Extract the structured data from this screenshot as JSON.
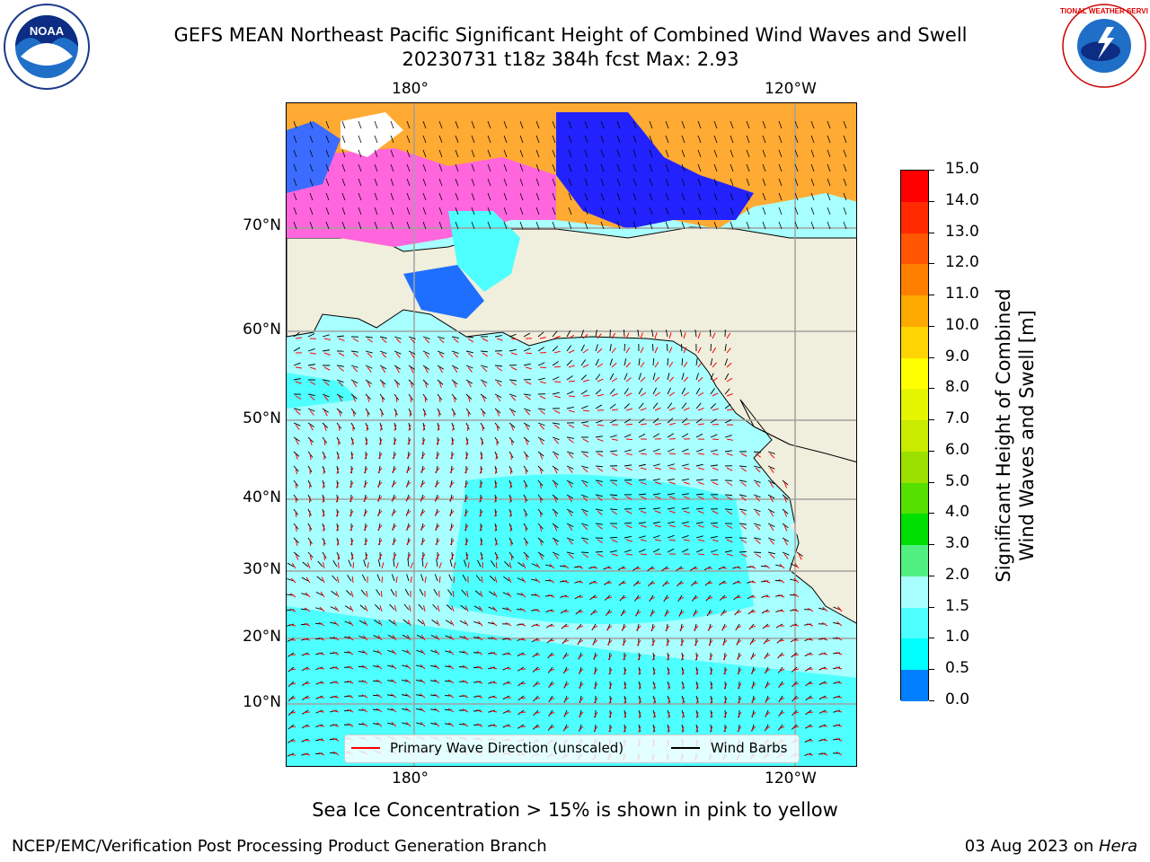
{
  "title_line1": "GEFS MEAN Northeast Pacific Significant Height of Combined Wind Waves and Swell",
  "title_line2": "20230731 t18z 384h fcst   Max: 2.93",
  "lon_ticks_top": [
    "180°",
    "120°W"
  ],
  "lon_ticks_bottom": [
    "180°",
    "120°W"
  ],
  "lat_ticks": [
    "70°N",
    "60°N",
    "50°N",
    "40°N",
    "30°N",
    "20°N",
    "10°N"
  ],
  "colorbar": {
    "label": "Significant Height of Combined Wind Waves and Swell [m]",
    "label_line1": "Significant Height of Combined",
    "label_line2": "Wind Waves and Swell [m]",
    "ticks": [
      "15.0",
      "14.0",
      "13.0",
      "12.0",
      "11.0",
      "10.0",
      "9.0",
      "8.0",
      "7.0",
      "6.0",
      "5.0",
      "4.0",
      "3.0",
      "2.0",
      "1.5",
      "1.0",
      "0.5",
      "0.0"
    ],
    "colors_top_to_bottom": [
      "#ff0000",
      "#ff2a00",
      "#ff5500",
      "#ff7f00",
      "#ffaa00",
      "#ffd400",
      "#ffff00",
      "#e5f500",
      "#c8eb00",
      "#9ce000",
      "#55e000",
      "#00e000",
      "#4ff080",
      "#a8ffff",
      "#4effff",
      "#00ffff",
      "#0080ff",
      "#0000ff"
    ]
  },
  "legend": {
    "wave_label": "Primary Wave Direction (unscaled)",
    "wind_label": "Wind Barbs",
    "wave_color": "#ff0000",
    "wind_color": "#000000"
  },
  "sea_ice_note": "Sea Ice Concentration > 15% is shown in pink to yellow",
  "footer_left": "NCEP/EMC/Verification Post Processing Product Generation Branch",
  "footer_right_date": "03 Aug 2023 on ",
  "footer_right_machine": "Hera",
  "logos": {
    "left": "NOAA",
    "right": "NATIONAL WEATHER SERVICE"
  },
  "colors": {
    "land": "#f0eedc",
    "ocean_low": "#a8ffff",
    "ocean_mid": "#4effff",
    "ice_blue": "#0000ff"
  }
}
